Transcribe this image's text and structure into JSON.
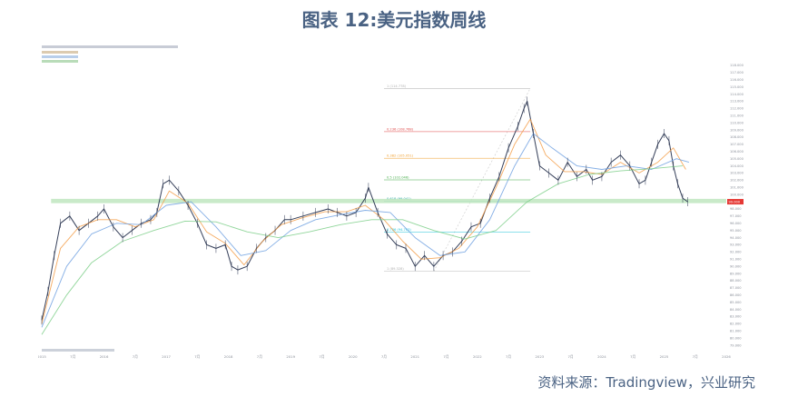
{
  "title": "图表 12:美元指数周线",
  "source": "资料来源：Tradingview，兴业研究",
  "chart_data": {
    "type": "line",
    "title": "图表 12:美元指数周线",
    "x_ticks": [
      "2015",
      "7月",
      "2016",
      "7月",
      "2017",
      "7月",
      "2018",
      "7月",
      "2019",
      "7月",
      "2020",
      "7月",
      "2021",
      "7月",
      "2022",
      "7月",
      "2023",
      "7月",
      "2024",
      "7月",
      "2025",
      "7月",
      "2026"
    ],
    "x_range": [
      2015.0,
      2026.0
    ],
    "y_ticks": [
      79.0,
      80.0,
      81.0,
      82.0,
      83.0,
      84.0,
      85.0,
      86.0,
      87.0,
      88.0,
      89.0,
      90.0,
      91.0,
      92.0,
      93.0,
      94.0,
      95.0,
      96.0,
      97.0,
      98.0,
      99.0,
      100.0,
      101.0,
      102.0,
      103.0,
      104.0,
      105.0,
      106.0,
      107.0,
      108.0,
      109.0,
      110.0,
      111.0,
      112.0,
      113.0,
      114.0,
      115.0,
      116.0,
      117.0,
      118.0
    ],
    "ylim": [
      78.5,
      118.5
    ],
    "series": [
      {
        "name": "",
        "color": "#2a3550",
        "x": [
          2015.0,
          2015.1,
          2015.2,
          2015.3,
          2015.45,
          2015.6,
          2015.75,
          2015.9,
          2016.0,
          2016.15,
          2016.3,
          2016.45,
          2016.6,
          2016.75,
          2016.85,
          2016.95,
          2017.05,
          2017.2,
          2017.35,
          2017.5,
          2017.65,
          2017.8,
          2017.95,
          2018.05,
          2018.15,
          2018.3,
          2018.45,
          2018.6,
          2018.75,
          2018.9,
          2019.0,
          2019.2,
          2019.4,
          2019.6,
          2019.75,
          2019.9,
          2020.05,
          2020.2,
          2020.25,
          2020.4,
          2020.55,
          2020.7,
          2020.85,
          2021.0,
          2021.15,
          2021.3,
          2021.45,
          2021.6,
          2021.75,
          2021.9,
          2022.05,
          2022.2,
          2022.35,
          2022.5,
          2022.65,
          2022.75,
          2022.8,
          2022.9,
          2023.0,
          2023.15,
          2023.3,
          2023.45,
          2023.6,
          2023.75,
          2023.85,
          2024.0,
          2024.15,
          2024.3,
          2024.45,
          2024.6,
          2024.7,
          2024.8,
          2024.9,
          2025.0,
          2025.08,
          2025.15,
          2025.22,
          2025.3,
          2025.38
        ],
        "values": [
          82.5,
          86.5,
          91.5,
          96.0,
          97.0,
          95.0,
          96.0,
          97.0,
          98.0,
          95.5,
          94.0,
          95.0,
          96.0,
          96.5,
          97.5,
          101.5,
          102.0,
          100.5,
          98.5,
          96.0,
          93.0,
          92.5,
          93.0,
          90.0,
          89.5,
          90.0,
          92.5,
          94.0,
          95.0,
          96.5,
          96.5,
          97.0,
          97.5,
          98.0,
          97.5,
          97.0,
          97.5,
          99.5,
          101.0,
          97.5,
          94.5,
          93.0,
          92.5,
          90.0,
          91.5,
          90.0,
          91.5,
          92.0,
          93.5,
          95.5,
          96.0,
          99.5,
          102.5,
          106.5,
          109.5,
          112.0,
          113.0,
          108.5,
          104.0,
          103.0,
          102.0,
          104.5,
          102.5,
          103.5,
          102.0,
          102.5,
          104.5,
          105.5,
          104.0,
          101.5,
          102.0,
          104.5,
          107.0,
          108.5,
          107.5,
          104.0,
          101.5,
          99.5,
          99.0
        ]
      },
      {
        "name": "",
        "color": "#f39c47",
        "x": [
          2015.0,
          2015.3,
          2015.6,
          2015.9,
          2016.2,
          2016.5,
          2016.8,
          2017.05,
          2017.35,
          2017.65,
          2017.95,
          2018.25,
          2018.55,
          2018.85,
          2019.2,
          2019.55,
          2019.9,
          2020.2,
          2020.5,
          2020.8,
          2021.1,
          2021.4,
          2021.7,
          2022.0,
          2022.3,
          2022.6,
          2022.85,
          2023.1,
          2023.4,
          2023.7,
          2024.0,
          2024.3,
          2024.6,
          2024.9,
          2025.15,
          2025.35
        ],
        "values": [
          82.0,
          92.5,
          95.5,
          96.5,
          96.5,
          95.5,
          96.5,
          100.5,
          98.8,
          94.8,
          93.2,
          90.2,
          93.5,
          95.8,
          96.8,
          97.6,
          97.6,
          98.5,
          96.5,
          93.5,
          91.0,
          91.2,
          92.5,
          95.5,
          101.0,
          107.0,
          110.5,
          105.5,
          103.2,
          103.2,
          102.8,
          104.5,
          103.0,
          104.5,
          106.5,
          103.5
        ]
      },
      {
        "name": "",
        "color": "#6fa0e0",
        "x": [
          2015.0,
          2015.4,
          2015.8,
          2016.2,
          2016.6,
          2017.0,
          2017.4,
          2017.8,
          2018.2,
          2018.6,
          2019.0,
          2019.4,
          2019.8,
          2020.2,
          2020.6,
          2021.0,
          2021.4,
          2021.8,
          2022.2,
          2022.6,
          2022.9,
          2023.2,
          2023.6,
          2024.0,
          2024.4,
          2024.8,
          2025.2,
          2025.4
        ],
        "values": [
          81.5,
          90.0,
          94.5,
          96.0,
          95.8,
          98.5,
          99.0,
          95.5,
          91.5,
          92.2,
          95.0,
          96.5,
          97.2,
          97.8,
          97.5,
          94.0,
          91.5,
          92.0,
          96.5,
          104.0,
          108.5,
          106.5,
          104.0,
          103.5,
          104.0,
          103.5,
          105.0,
          104.5
        ]
      },
      {
        "name": "",
        "color": "#7ecf8a",
        "x": [
          2015.0,
          2015.4,
          2015.8,
          2016.3,
          2016.8,
          2017.3,
          2017.8,
          2018.3,
          2018.8,
          2019.3,
          2019.8,
          2020.3,
          2020.8,
          2021.3,
          2021.8,
          2022.3,
          2022.8,
          2023.3,
          2023.8,
          2024.3,
          2024.8,
          2025.3
        ],
        "values": [
          80.5,
          86.0,
          90.5,
          93.5,
          95.0,
          96.3,
          96.2,
          94.8,
          94.0,
          94.8,
          95.8,
          96.5,
          96.5,
          95.0,
          93.8,
          95.0,
          99.0,
          101.5,
          102.8,
          103.3,
          103.6,
          104.0
        ]
      }
    ],
    "fib_levels": [
      {
        "label": "1 (114.778)",
        "value": 114.778,
        "color": "#b0b0b0"
      },
      {
        "label": "0.236 (108.768)",
        "value": 108.768,
        "color": "#e05050"
      },
      {
        "label": "0.382 (105.051)",
        "value": 105.051,
        "color": "#f0a030"
      },
      {
        "label": "0.5 (102.046)",
        "value": 102.046,
        "color": "#4caf50"
      },
      {
        "label": "0.618 (99.041)",
        "value": 99.041,
        "color": "#26a69a"
      },
      {
        "label": "0.786 (94.763)",
        "value": 94.763,
        "color": "#26c6da"
      },
      {
        "label": "1 (89.328)",
        "value": 89.328,
        "color": "#b0b0b0"
      }
    ],
    "support_band": [
      98.8,
      99.4
    ],
    "last_price": 99.0
  }
}
